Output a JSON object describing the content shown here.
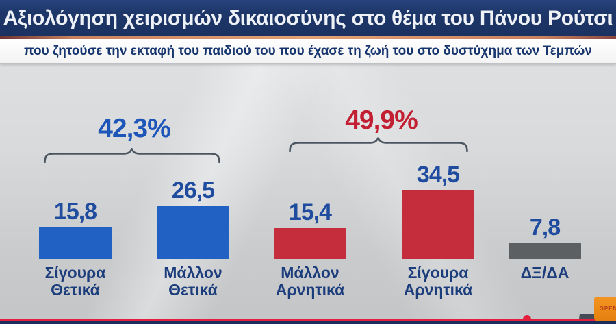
{
  "header": {
    "title": "Αξιολόγηση χειρισμών δικαιοσύνης στο θέμα του Πάνου Ρούτσι",
    "subtitle": "που ζητούσε την εκταφή του παιδιού του που έχασε τη ζωή του στο δυστύχημα των Τεμπών"
  },
  "chart_data": {
    "type": "bar",
    "title": "Αξιολόγηση χειρισμών δικαιοσύνης στο θέμα του Πάνου Ρούτσι",
    "subtitle": "που ζητούσε την εκταφή του παιδιού του που έχασε τη ζωή του στο δυστύχημα των Τεμπών",
    "categories": [
      "Σίγουρα Θετικά",
      "Μάλλον Θετικά",
      "Μάλλον Αρνητικά",
      "Σίγουρα Αρνητικά",
      "ΔΞ/ΔΑ"
    ],
    "values": [
      15.8,
      26.5,
      15.4,
      34.5,
      7.8
    ],
    "value_labels": [
      "15,8",
      "26,5",
      "15,4",
      "34,5",
      "7,8"
    ],
    "bar_colors": [
      "#2161c4",
      "#2161c4",
      "#c52c3c",
      "#c52c3c",
      "#5d6063"
    ],
    "ylim": [
      0,
      40
    ],
    "grid": false,
    "legend": false,
    "groups": [
      {
        "label": "42,3%",
        "value": 42.3,
        "color": "#1d55b8",
        "members": [
          "Σίγουρα Θετικά",
          "Μάλλον Θετικά"
        ]
      },
      {
        "label": "49,9%",
        "value": 49.9,
        "color": "#c21f33",
        "members": [
          "Μάλλον Αρνητικά",
          "Σίγουρα Αρνητικά"
        ]
      }
    ]
  },
  "branding": {
    "logo_text": "OPEN"
  },
  "colors": {
    "header_bg": "#1e3769",
    "header_text": "#eef1f6",
    "accent_line": "#e5a277",
    "subtitle_text": "#16356e",
    "value_text": "#1f4c9e",
    "category_text": "#1c3d7c",
    "brace": "#4a5560",
    "positive_bar": "#2161c4",
    "negative_bar": "#c52c3c",
    "neutral_bar": "#5d6063",
    "progress_line": "#e41e3f",
    "bottom_bar": "#1b2d5a",
    "logo_bg": "#ee8b17",
    "logo_text": "#b5401c"
  }
}
